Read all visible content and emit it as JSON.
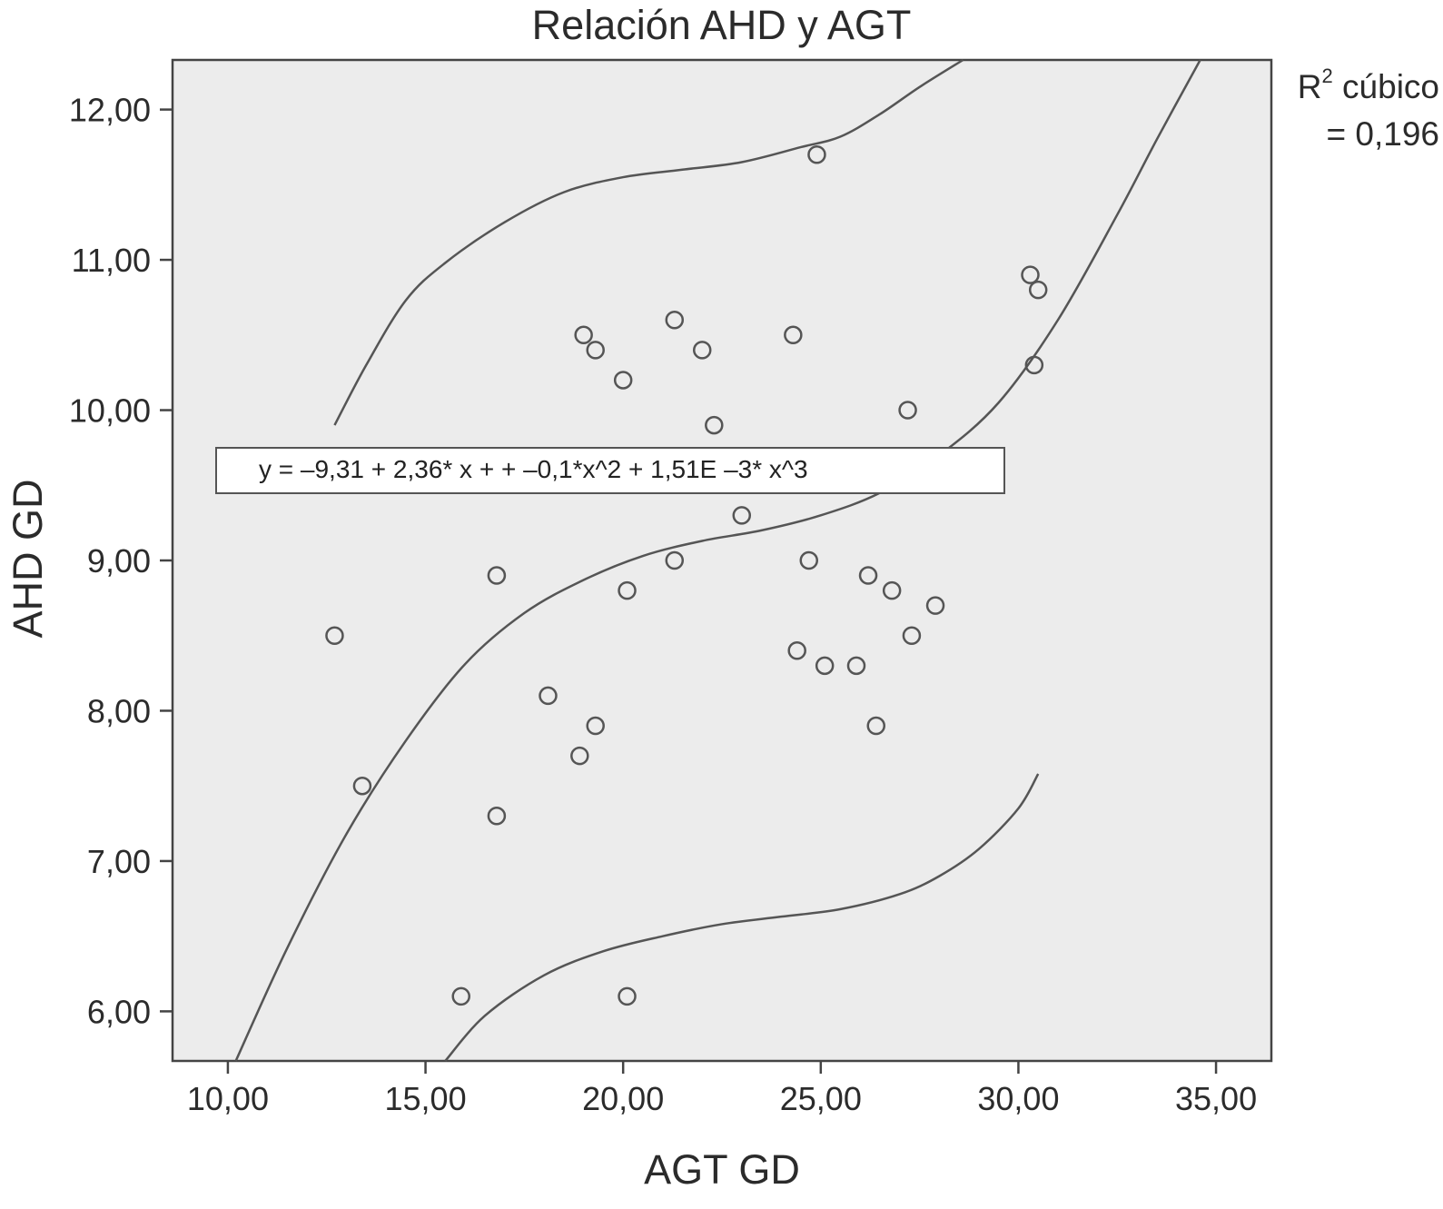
{
  "chart_data": {
    "type": "scatter",
    "title": "Relación AHD y AGT",
    "xlabel": "AGT GD",
    "ylabel": "AHD GD",
    "xlim": [
      8.6,
      36.4
    ],
    "ylim": [
      5.67,
      12.33
    ],
    "x_ticks": [
      "10,00",
      "15,00",
      "20,00",
      "25,00",
      "30,00",
      "35,00"
    ],
    "y_ticks": [
      "6,00",
      "7,00",
      "8,00",
      "9,00",
      "10,00",
      "11,00",
      "12,00"
    ],
    "points": [
      {
        "x": 12.7,
        "y": 8.5
      },
      {
        "x": 13.4,
        "y": 7.5
      },
      {
        "x": 15.9,
        "y": 6.1
      },
      {
        "x": 16.8,
        "y": 8.9
      },
      {
        "x": 16.8,
        "y": 7.3
      },
      {
        "x": 18.1,
        "y": 8.1
      },
      {
        "x": 18.9,
        "y": 7.7
      },
      {
        "x": 19.0,
        "y": 10.5
      },
      {
        "x": 19.3,
        "y": 10.4
      },
      {
        "x": 19.3,
        "y": 7.9
      },
      {
        "x": 20.0,
        "y": 10.2
      },
      {
        "x": 20.1,
        "y": 8.8
      },
      {
        "x": 20.1,
        "y": 6.1
      },
      {
        "x": 21.3,
        "y": 10.6
      },
      {
        "x": 21.3,
        "y": 9.0
      },
      {
        "x": 22.0,
        "y": 10.4
      },
      {
        "x": 22.3,
        "y": 9.9
      },
      {
        "x": 23.0,
        "y": 9.3
      },
      {
        "x": 24.3,
        "y": 10.5
      },
      {
        "x": 24.4,
        "y": 8.4
      },
      {
        "x": 24.7,
        "y": 9.0
      },
      {
        "x": 24.9,
        "y": 11.7
      },
      {
        "x": 25.1,
        "y": 8.3
      },
      {
        "x": 25.9,
        "y": 8.3
      },
      {
        "x": 26.2,
        "y": 8.9
      },
      {
        "x": 26.4,
        "y": 7.9
      },
      {
        "x": 26.8,
        "y": 8.8
      },
      {
        "x": 27.2,
        "y": 10.0
      },
      {
        "x": 27.3,
        "y": 8.5
      },
      {
        "x": 27.9,
        "y": 8.7
      },
      {
        "x": 30.3,
        "y": 10.9
      },
      {
        "x": 30.4,
        "y": 10.3
      },
      {
        "x": 30.5,
        "y": 10.8
      }
    ],
    "fit_curve": {
      "type": "cubic",
      "points": [
        {
          "x": 10.2,
          "y": 5.67
        },
        {
          "x": 11.5,
          "y": 6.42
        },
        {
          "x": 13.0,
          "y": 7.18
        },
        {
          "x": 14.5,
          "y": 7.8
        },
        {
          "x": 16.0,
          "y": 8.31
        },
        {
          "x": 17.5,
          "y": 8.65
        },
        {
          "x": 19.0,
          "y": 8.87
        },
        {
          "x": 20.5,
          "y": 9.03
        },
        {
          "x": 22.0,
          "y": 9.13
        },
        {
          "x": 23.5,
          "y": 9.2
        },
        {
          "x": 25.0,
          "y": 9.3
        },
        {
          "x": 26.5,
          "y": 9.45
        },
        {
          "x": 28.0,
          "y": 9.7
        },
        {
          "x": 29.5,
          "y": 10.05
        },
        {
          "x": 31.0,
          "y": 10.6
        },
        {
          "x": 32.5,
          "y": 11.3
        },
        {
          "x": 33.5,
          "y": 11.8
        },
        {
          "x": 34.6,
          "y": 12.33
        }
      ]
    },
    "upper_band": {
      "points": [
        {
          "x": 12.7,
          "y": 9.9
        },
        {
          "x": 13.5,
          "y": 10.3
        },
        {
          "x": 14.5,
          "y": 10.73
        },
        {
          "x": 15.5,
          "y": 10.98
        },
        {
          "x": 17.0,
          "y": 11.25
        },
        {
          "x": 18.5,
          "y": 11.45
        },
        {
          "x": 20.0,
          "y": 11.55
        },
        {
          "x": 21.5,
          "y": 11.6
        },
        {
          "x": 23.0,
          "y": 11.65
        },
        {
          "x": 24.5,
          "y": 11.75
        },
        {
          "x": 25.5,
          "y": 11.82
        },
        {
          "x": 26.5,
          "y": 11.97
        },
        {
          "x": 27.5,
          "y": 12.15
        },
        {
          "x": 28.6,
          "y": 12.33
        }
      ]
    },
    "lower_band": {
      "points": [
        {
          "x": 15.5,
          "y": 5.67
        },
        {
          "x": 16.5,
          "y": 5.97
        },
        {
          "x": 18.0,
          "y": 6.24
        },
        {
          "x": 19.5,
          "y": 6.4
        },
        {
          "x": 21.0,
          "y": 6.5
        },
        {
          "x": 22.5,
          "y": 6.58
        },
        {
          "x": 24.0,
          "y": 6.63
        },
        {
          "x": 25.5,
          "y": 6.68
        },
        {
          "x": 27.0,
          "y": 6.78
        },
        {
          "x": 28.0,
          "y": 6.9
        },
        {
          "x": 29.0,
          "y": 7.08
        },
        {
          "x": 30.0,
          "y": 7.35
        },
        {
          "x": 30.5,
          "y": 7.58
        }
      ]
    },
    "equation": "y = –9,31 + 2,36* x + + –0,1*x^2 + 1,51E –3* x^3",
    "r2_label": "cúbico",
    "r2_value": "= 0,196",
    "grid": false,
    "colors": {
      "plot_background": "#ececec",
      "line": "#555555",
      "marker": "#555555"
    }
  }
}
